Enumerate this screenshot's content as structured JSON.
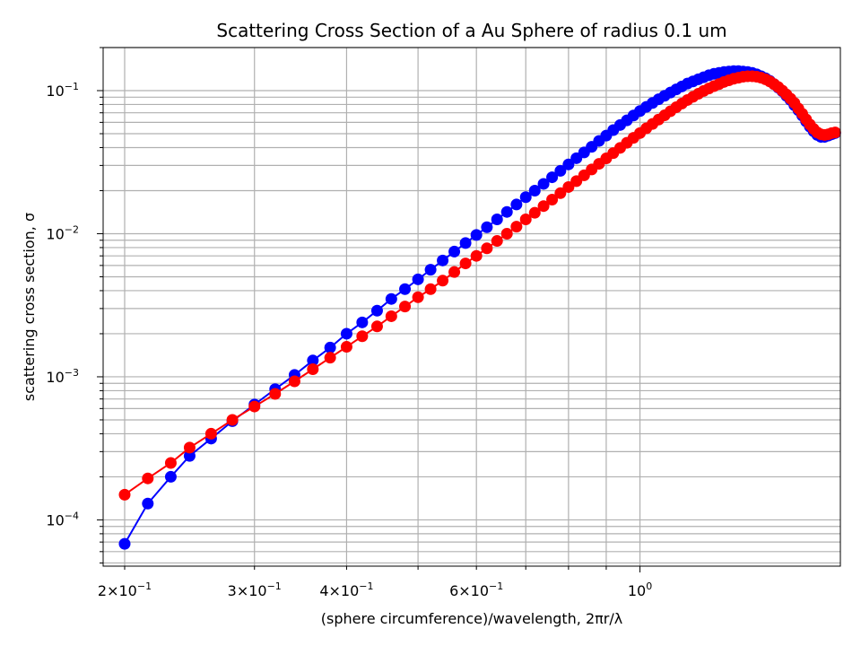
{
  "chart_data": {
    "type": "line",
    "title": "Scattering Cross Section of a Au Sphere of radius 0.1 um",
    "xlabel": "(sphere circumference)/wavelength, 2πr/λ",
    "ylabel": "scattering cross section, σ",
    "xscale": "log",
    "yscale": "log",
    "xlim": [
      0.187,
      1.87
    ],
    "ylim": [
      4.75e-05,
      0.2
    ],
    "grid": "both-major-minor",
    "legend": "none",
    "x_ticks": [
      {
        "value": 0.2,
        "base": "2×10",
        "exp": "−1"
      },
      {
        "value": 0.3,
        "base": "3×10",
        "exp": "−1"
      },
      {
        "value": 0.4,
        "base": "4×10",
        "exp": "−1"
      },
      {
        "value": 0.6,
        "base": "6×10",
        "exp": "−1"
      },
      {
        "value": 1.0,
        "base": "10",
        "exp": "0"
      }
    ],
    "y_ticks": [
      {
        "value": 0.0001,
        "base": "10",
        "exp": "−4"
      },
      {
        "value": 0.001,
        "base": "10",
        "exp": "−3"
      },
      {
        "value": 0.01,
        "base": "10",
        "exp": "−2"
      },
      {
        "value": 0.1,
        "base": "10",
        "exp": "−1"
      }
    ],
    "series": [
      {
        "color": "#0000ff",
        "points": [
          [
            0.2,
            6.8e-05
          ],
          [
            0.215,
            0.00013
          ],
          [
            0.231,
            0.0002
          ],
          [
            0.245,
            0.00028
          ],
          [
            0.262,
            0.00037
          ],
          [
            0.28,
            0.00049
          ],
          [
            0.3,
            0.00064
          ],
          [
            0.32,
            0.00082
          ],
          [
            0.34,
            0.00103
          ],
          [
            0.36,
            0.0013
          ],
          [
            0.38,
            0.0016
          ],
          [
            0.4,
            0.002
          ],
          [
            0.42,
            0.0024
          ],
          [
            0.44,
            0.0029
          ],
          [
            0.46,
            0.0035
          ],
          [
            0.48,
            0.0041
          ],
          [
            0.5,
            0.0048
          ],
          [
            0.52,
            0.0056
          ],
          [
            0.54,
            0.0065
          ],
          [
            0.56,
            0.0075
          ],
          [
            0.58,
            0.0086
          ],
          [
            0.6,
            0.0098
          ],
          [
            0.62,
            0.0111
          ],
          [
            0.64,
            0.0126
          ],
          [
            0.66,
            0.0142
          ],
          [
            0.68,
            0.016
          ],
          [
            0.7,
            0.018
          ],
          [
            0.72,
            0.02
          ],
          [
            0.74,
            0.0223
          ],
          [
            0.76,
            0.0248
          ],
          [
            0.78,
            0.0275
          ],
          [
            0.8,
            0.0305
          ],
          [
            0.82,
            0.0337
          ],
          [
            0.84,
            0.037
          ],
          [
            0.86,
            0.0405
          ],
          [
            0.88,
            0.0445
          ],
          [
            0.9,
            0.0485
          ],
          [
            0.92,
            0.053
          ],
          [
            0.94,
            0.0575
          ],
          [
            0.96,
            0.062
          ],
          [
            0.98,
            0.067
          ],
          [
            1.0,
            0.072
          ],
          [
            1.02,
            0.077
          ],
          [
            1.04,
            0.082
          ],
          [
            1.06,
            0.087
          ],
          [
            1.08,
            0.092
          ],
          [
            1.1,
            0.097
          ],
          [
            1.12,
            0.102
          ],
          [
            1.14,
            0.107
          ],
          [
            1.16,
            0.112
          ],
          [
            1.18,
            0.116
          ],
          [
            1.2,
            0.12
          ],
          [
            1.22,
            0.124
          ],
          [
            1.24,
            0.128
          ],
          [
            1.26,
            0.131
          ],
          [
            1.28,
            0.133
          ],
          [
            1.3,
            0.135
          ],
          [
            1.32,
            0.136
          ],
          [
            1.34,
            0.137
          ],
          [
            1.36,
            0.137
          ],
          [
            1.38,
            0.136
          ],
          [
            1.4,
            0.135
          ],
          [
            1.42,
            0.133
          ],
          [
            1.44,
            0.13
          ],
          [
            1.46,
            0.126
          ],
          [
            1.48,
            0.122
          ],
          [
            1.5,
            0.117
          ],
          [
            1.52,
            0.111
          ],
          [
            1.54,
            0.105
          ],
          [
            1.56,
            0.099
          ],
          [
            1.58,
            0.092
          ],
          [
            1.6,
            0.086
          ],
          [
            1.62,
            0.079
          ],
          [
            1.64,
            0.073
          ],
          [
            1.66,
            0.067
          ],
          [
            1.68,
            0.061
          ],
          [
            1.7,
            0.056
          ],
          [
            1.72,
            0.052
          ],
          [
            1.74,
            0.049
          ],
          [
            1.76,
            0.0475
          ],
          [
            1.78,
            0.0475
          ],
          [
            1.8,
            0.0485
          ],
          [
            1.82,
            0.0495
          ],
          [
            1.84,
            0.0505
          ]
        ]
      },
      {
        "color": "#ff0000",
        "points": [
          [
            0.2,
            0.00015
          ],
          [
            0.215,
            0.000195
          ],
          [
            0.231,
            0.00025
          ],
          [
            0.245,
            0.00032
          ],
          [
            0.262,
            0.0004
          ],
          [
            0.28,
            0.0005
          ],
          [
            0.3,
            0.00062
          ],
          [
            0.32,
            0.00076
          ],
          [
            0.34,
            0.00093
          ],
          [
            0.36,
            0.00113
          ],
          [
            0.38,
            0.00136
          ],
          [
            0.4,
            0.00162
          ],
          [
            0.42,
            0.00192
          ],
          [
            0.44,
            0.00225
          ],
          [
            0.46,
            0.00265
          ],
          [
            0.48,
            0.0031
          ],
          [
            0.5,
            0.0036
          ],
          [
            0.52,
            0.0041
          ],
          [
            0.54,
            0.0047
          ],
          [
            0.56,
            0.0054
          ],
          [
            0.58,
            0.0062
          ],
          [
            0.6,
            0.007
          ],
          [
            0.62,
            0.0079
          ],
          [
            0.64,
            0.0089
          ],
          [
            0.66,
            0.01
          ],
          [
            0.68,
            0.0112
          ],
          [
            0.7,
            0.0126
          ],
          [
            0.72,
            0.014
          ],
          [
            0.74,
            0.0156
          ],
          [
            0.76,
            0.0173
          ],
          [
            0.78,
            0.0192
          ],
          [
            0.8,
            0.0212
          ],
          [
            0.82,
            0.0233
          ],
          [
            0.84,
            0.0256
          ],
          [
            0.86,
            0.0281
          ],
          [
            0.88,
            0.0308
          ],
          [
            0.9,
            0.0336
          ],
          [
            0.92,
            0.0366
          ],
          [
            0.94,
            0.0398
          ],
          [
            0.96,
            0.0432
          ],
          [
            0.98,
            0.0468
          ],
          [
            1.0,
            0.0505
          ],
          [
            1.02,
            0.0545
          ],
          [
            1.04,
            0.0585
          ],
          [
            1.06,
            0.0628
          ],
          [
            1.08,
            0.0672
          ],
          [
            1.1,
            0.0718
          ],
          [
            1.12,
            0.0765
          ],
          [
            1.14,
            0.0812
          ],
          [
            1.16,
            0.086
          ],
          [
            1.18,
            0.0905
          ],
          [
            1.2,
            0.095
          ],
          [
            1.22,
            0.0995
          ],
          [
            1.24,
            0.1035
          ],
          [
            1.26,
            0.1075
          ],
          [
            1.28,
            0.111
          ],
          [
            1.3,
            0.115
          ],
          [
            1.32,
            0.118
          ],
          [
            1.34,
            0.121
          ],
          [
            1.36,
            0.123
          ],
          [
            1.38,
            0.125
          ],
          [
            1.4,
            0.126
          ],
          [
            1.42,
            0.126
          ],
          [
            1.44,
            0.125
          ],
          [
            1.46,
            0.123
          ],
          [
            1.48,
            0.12
          ],
          [
            1.5,
            0.116
          ],
          [
            1.52,
            0.111
          ],
          [
            1.54,
            0.106
          ],
          [
            1.56,
            0.1
          ],
          [
            1.58,
            0.094
          ],
          [
            1.6,
            0.088
          ],
          [
            1.62,
            0.082
          ],
          [
            1.64,
            0.075
          ],
          [
            1.66,
            0.069
          ],
          [
            1.68,
            0.063
          ],
          [
            1.7,
            0.058
          ],
          [
            1.72,
            0.054
          ],
          [
            1.74,
            0.051
          ],
          [
            1.76,
            0.0495
          ],
          [
            1.78,
            0.049
          ],
          [
            1.8,
            0.0495
          ],
          [
            1.82,
            0.0505
          ],
          [
            1.84,
            0.051
          ]
        ]
      }
    ]
  }
}
